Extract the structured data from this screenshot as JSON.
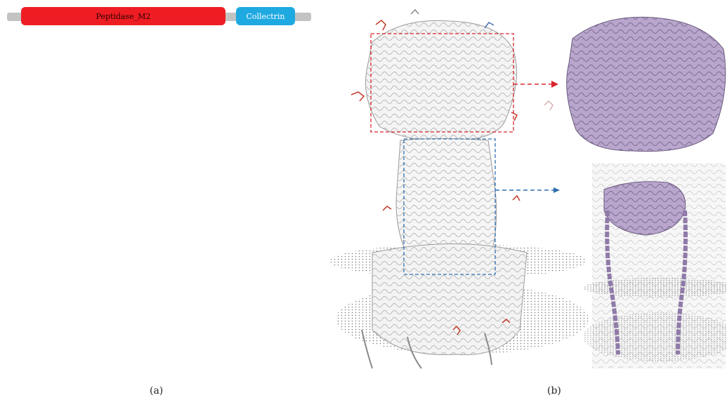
{
  "panel_a": {
    "domains": [
      {
        "name": "Peptidase_M2",
        "color": "#ee1d23"
      },
      {
        "name": "Collectrin",
        "color": "#1fa9e1"
      }
    ],
    "backbone_color": "#c3c3c3",
    "label": "(a)"
  },
  "panel_b": {
    "label": "(b)",
    "protein_color": "#ffffff",
    "highlight_color": "#b8a6cc",
    "box_colors": {
      "top": "#d9262b",
      "middle": "#2e6fb0"
    },
    "regions": [
      "top-box",
      "middle-box"
    ]
  }
}
